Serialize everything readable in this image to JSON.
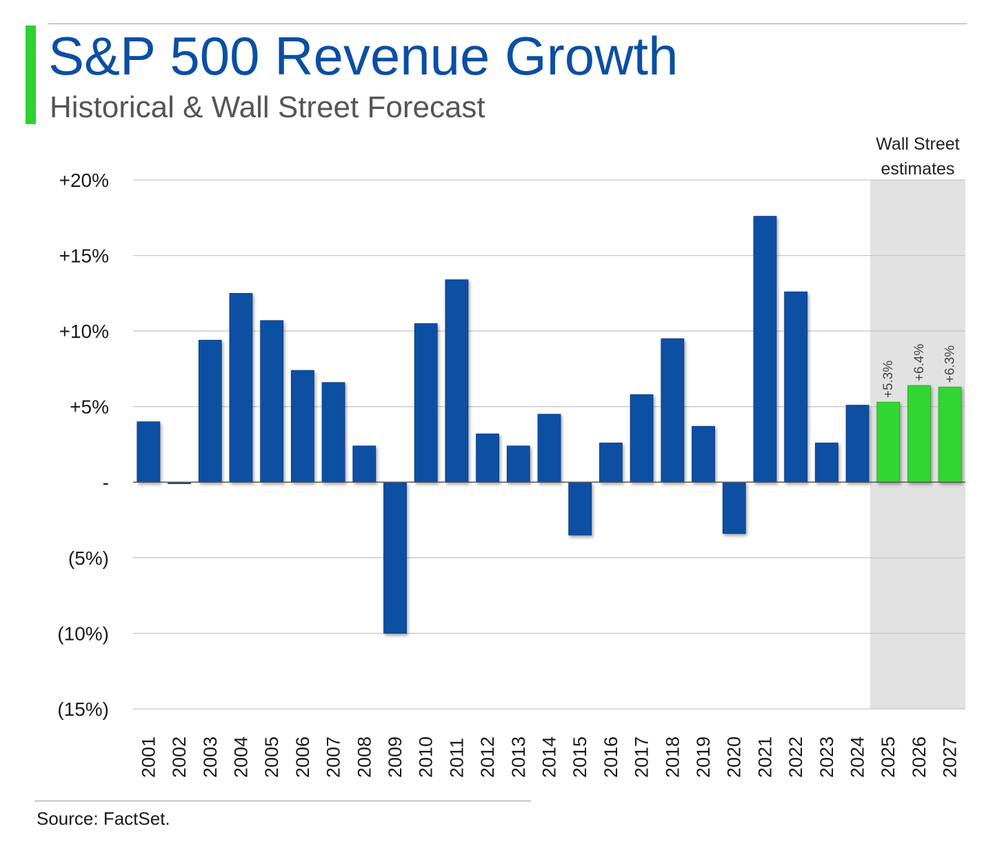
{
  "title": "S&P 500 Revenue Growth",
  "subtitle": "Historical & Wall Street Forecast",
  "source": "Source: FactSet.",
  "estimate_region_label": [
    "Wall Street",
    "estimates"
  ],
  "colors": {
    "historical_bar": "#0a4fa3",
    "estimate_bar": "#33d633",
    "estimate_bg": "#e2e2e2",
    "accent": "#2fd12f",
    "title": "#0a4fa3"
  },
  "chart_data": {
    "type": "bar",
    "title": "S&P 500 Revenue Growth",
    "subtitle": "Historical & Wall Street Forecast",
    "xlabel": "",
    "ylabel": "",
    "ylim": [
      -15,
      20
    ],
    "yticks": [
      20,
      15,
      10,
      5,
      0,
      -5,
      -10,
      -15
    ],
    "ytick_labels": [
      "+20%",
      "+15%",
      "+10%",
      "+5%",
      "-",
      "(5%)",
      "(10%)",
      "(15%)"
    ],
    "grid": true,
    "categories": [
      "2001",
      "2002",
      "2003",
      "2004",
      "2005",
      "2006",
      "2007",
      "2008",
      "2009",
      "2010",
      "2011",
      "2012",
      "2013",
      "2014",
      "2015",
      "2016",
      "2017",
      "2018",
      "2019",
      "2020",
      "2021",
      "2022",
      "2023",
      "2024",
      "2025",
      "2026",
      "2027"
    ],
    "values": [
      4.0,
      -0.1,
      9.4,
      12.5,
      10.7,
      7.4,
      6.6,
      2.4,
      -10.0,
      10.5,
      13.4,
      3.2,
      2.4,
      4.5,
      -3.5,
      2.6,
      5.8,
      9.5,
      3.7,
      -3.4,
      17.6,
      12.6,
      2.6,
      5.1,
      5.3,
      6.4,
      6.3
    ],
    "estimate_categories": [
      "2025",
      "2026",
      "2027"
    ],
    "data_labels": {
      "2025": "+5.3%",
      "2026": "+6.4%",
      "2027": "+6.3%"
    }
  }
}
